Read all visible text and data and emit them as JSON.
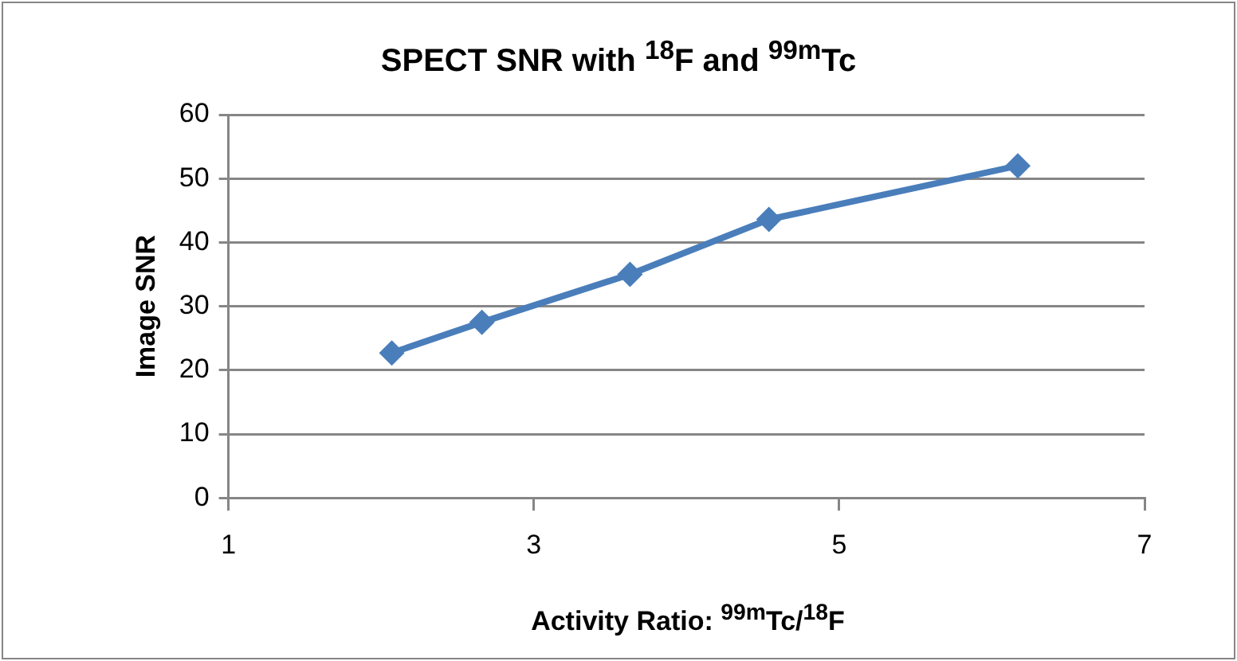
{
  "chart_data": {
    "type": "line",
    "title": "SPECT SNR with  $^{18}$F and  $^{99m}$Tc",
    "xlabel": "Activity Ratio: $^{99m}$Tc/$^{18}$F",
    "ylabel": "Image SNR",
    "x": [
      2.07,
      2.66,
      3.63,
      4.54,
      6.17
    ],
    "series": [
      {
        "color": "#4a7ebb",
        "values": [
          22.7,
          27.5,
          35.0,
          43.6,
          52.0
        ]
      }
    ],
    "xlim": [
      1,
      7
    ],
    "xticks": [
      1,
      3,
      5,
      7
    ],
    "ylim": [
      0,
      60
    ],
    "yticks": [
      0,
      10,
      20,
      30,
      40,
      50,
      60
    ],
    "grid": "y",
    "legend": false,
    "marker": "diamond",
    "line_style": "solid"
  }
}
